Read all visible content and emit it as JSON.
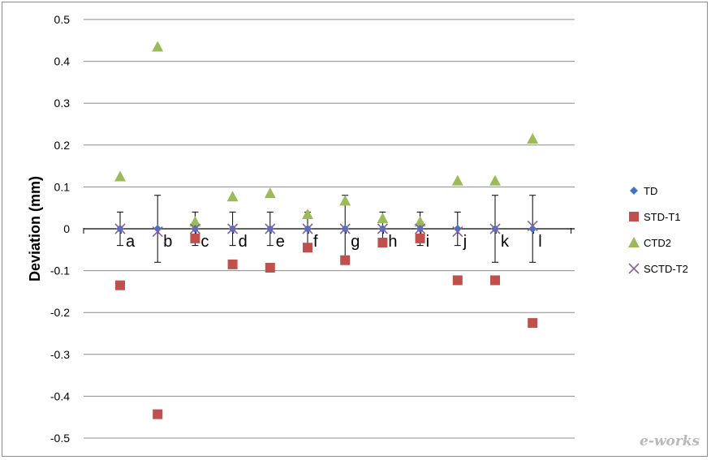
{
  "chart_data": {
    "type": "scatter",
    "title": "",
    "xlabel": "",
    "ylabel": "Deviation  (mm)",
    "ylim": [
      -0.5,
      0.5
    ],
    "yticks": [
      "0.5",
      "0.4",
      "0.3",
      "0.2",
      "0.1",
      "0",
      "-0.1",
      "-0.2",
      "-0.3",
      "-0.4",
      "-0.5"
    ],
    "ytick_values": [
      0.5,
      0.4,
      0.3,
      0.2,
      0.1,
      0,
      -0.1,
      -0.2,
      -0.3,
      -0.4,
      -0.5
    ],
    "grid": true,
    "legend_position": "right",
    "categories": [
      "a",
      "b",
      "c",
      "d",
      "e",
      "f",
      "g",
      "h",
      "i",
      "j",
      "k",
      "l"
    ],
    "error_bars": [
      0.04,
      0.08,
      0.04,
      0.04,
      0.04,
      0.04,
      0.08,
      0.04,
      0.04,
      0.04,
      0.08,
      0.08
    ],
    "series": [
      {
        "name": "TD",
        "marker": "diamond",
        "color": "#4472c4",
        "values": [
          0,
          0,
          0,
          0,
          0,
          0,
          0,
          0,
          0,
          0,
          0,
          0
        ]
      },
      {
        "name": "STD-T1",
        "marker": "square",
        "color": "#c0504d",
        "values": [
          -0.135,
          -0.443,
          -0.023,
          -0.085,
          -0.093,
          -0.045,
          -0.075,
          -0.033,
          -0.023,
          -0.123,
          -0.123,
          -0.225
        ]
      },
      {
        "name": "CTD2",
        "marker": "triangle",
        "color": "#9bbb59",
        "values": [
          0.125,
          0.435,
          0.017,
          0.077,
          0.085,
          0.035,
          0.067,
          0.025,
          0.017,
          0.115,
          0.115,
          0.215
        ]
      },
      {
        "name": "SCTD-T2",
        "marker": "x",
        "color": "#8064a2",
        "values": [
          0,
          -0.007,
          0,
          0,
          0,
          0,
          0,
          0,
          0,
          -0.007,
          0,
          0.007
        ]
      }
    ]
  },
  "watermark": "e-works"
}
